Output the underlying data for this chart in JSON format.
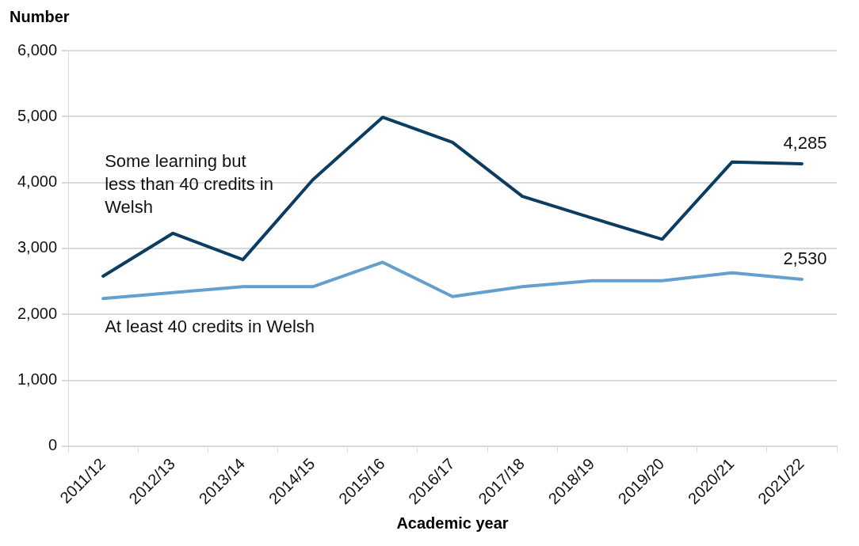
{
  "chart_data": {
    "type": "line",
    "ylabel": "Number",
    "xlabel": "Academic year",
    "categories": [
      "2011/12",
      "2012/13",
      "2013/14",
      "2014/15",
      "2015/16",
      "2016/17",
      "2017/18",
      "2018/19",
      "2019/20",
      "2020/21",
      "2021/22"
    ],
    "series": [
      {
        "name": "Some learning but less than 40 credits in Welsh",
        "color": "#0b3d63",
        "values": [
          2580,
          3230,
          2830,
          4040,
          4990,
          4610,
          3790,
          3460,
          3140,
          4310,
          4285
        ],
        "value_labels": [
          null,
          null,
          null,
          null,
          null,
          null,
          null,
          null,
          null,
          null,
          "4,285"
        ]
      },
      {
        "name": "At least 40 credits in Welsh",
        "color": "#639fcf",
        "values": [
          2240,
          2330,
          2420,
          2420,
          2790,
          2270,
          2420,
          2510,
          2510,
          2630,
          2530
        ],
        "value_labels": [
          null,
          null,
          null,
          null,
          null,
          null,
          null,
          null,
          null,
          null,
          "2,530"
        ]
      }
    ],
    "ylim": [
      0,
      6000
    ],
    "yticks": [
      0,
      {
        "value": 1000,
        "label": "1,000"
      },
      {
        "value": 2000,
        "label": "2,000"
      },
      {
        "value": 3000,
        "label": "3,000"
      },
      {
        "value": 4000,
        "label": "4,000"
      },
      {
        "value": 5000,
        "label": "5,000"
      },
      {
        "value": 6000,
        "label": "6,000"
      }
    ],
    "grid": "y",
    "legend": false,
    "marker": "none",
    "line_style": "solid"
  }
}
